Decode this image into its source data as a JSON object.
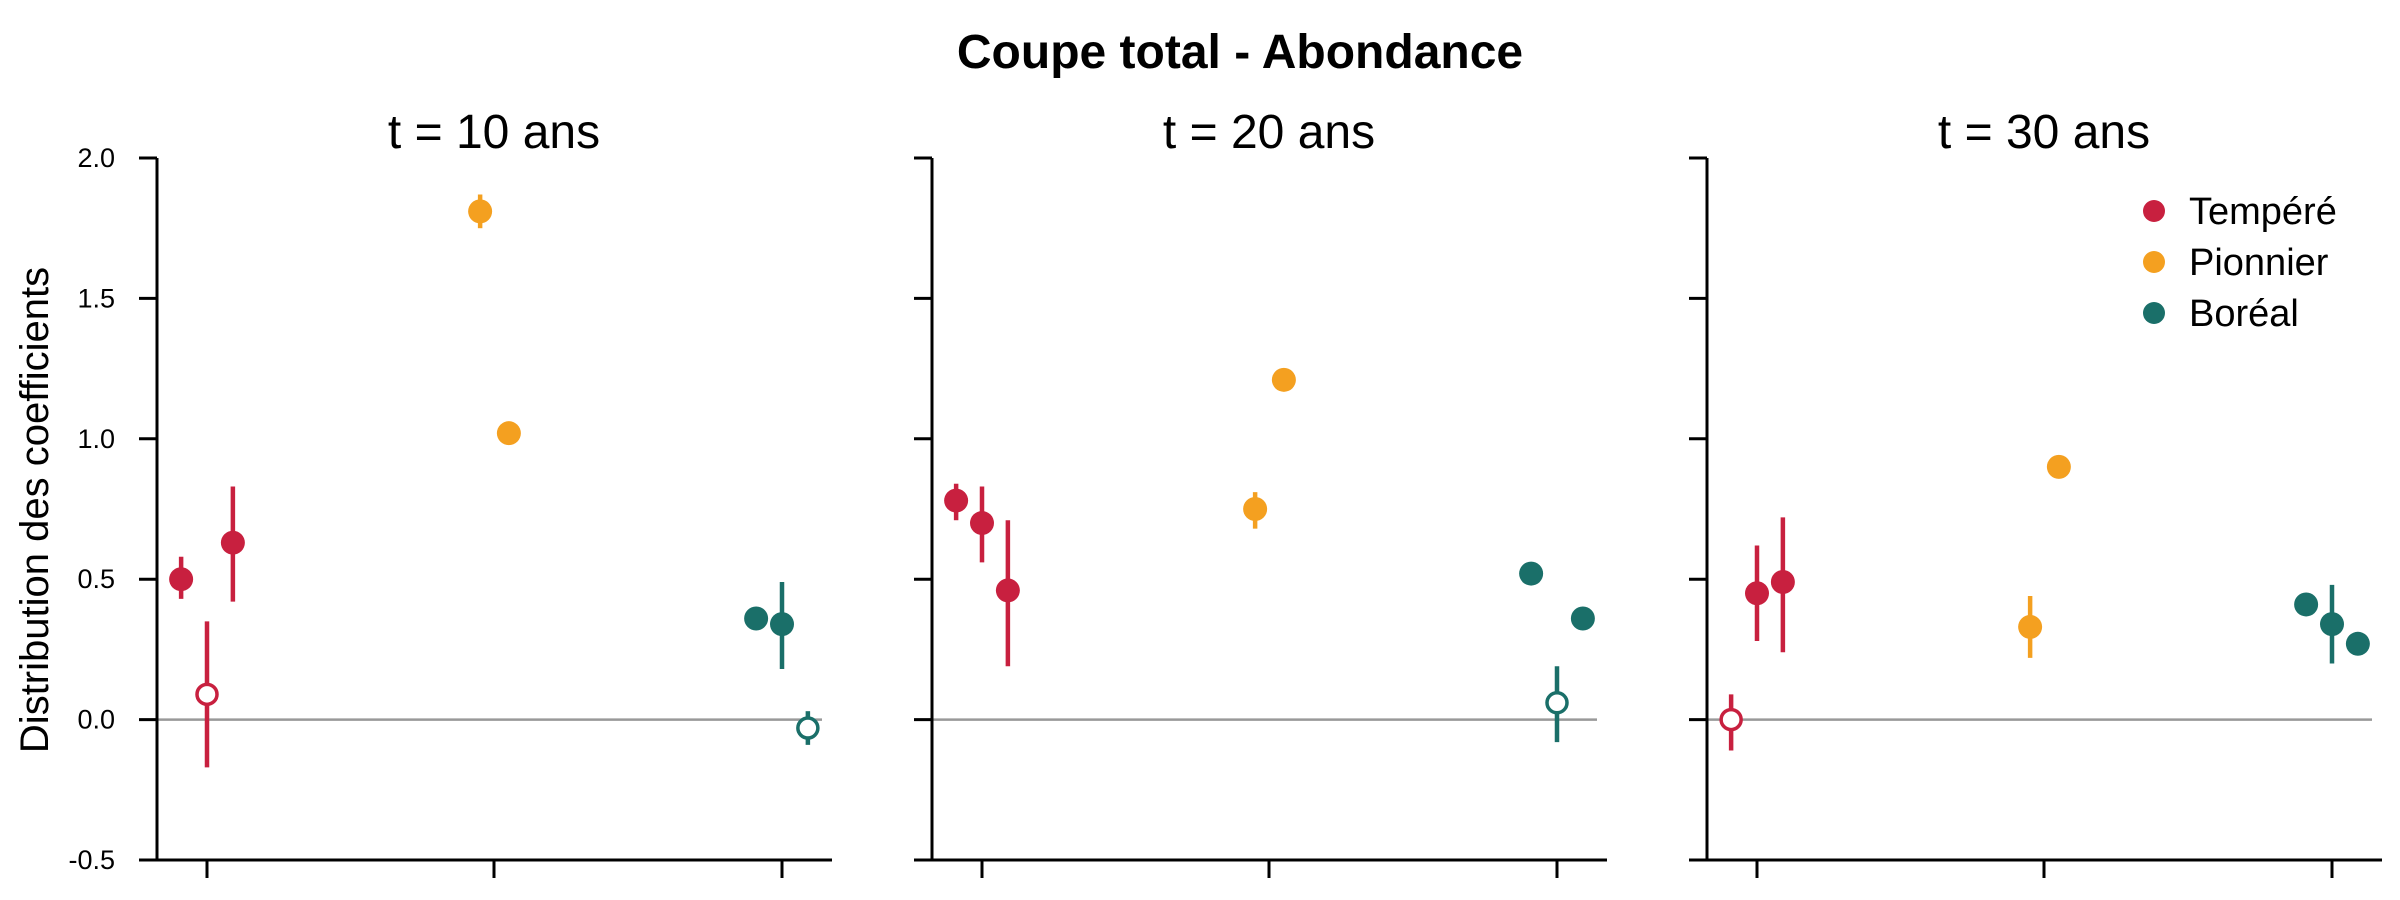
{
  "chart_data": {
    "type": "scatter",
    "title": "Coupe total - Abondance",
    "ylabel": "Distribution des coefficients",
    "ylim": [
      -0.5,
      2.0
    ],
    "yticks": [
      "2.0",
      "1.5",
      "1.0",
      "0.5",
      "0.0",
      "-0.5"
    ],
    "yticks_values": [
      2.0,
      1.5,
      1.0,
      0.5,
      0.0,
      -0.5
    ],
    "reference_line": 0.0,
    "legend_placement": "top-right",
    "colors": {
      "Tempéré": "#c8203f",
      "Pionnier": "#f4a020",
      "Boréal": "#1a6f69"
    },
    "series_names": [
      "Tempéré",
      "Pionnier",
      "Boréal"
    ],
    "panels": [
      {
        "label": "t = 10 ans",
        "points": [
          {
            "group": "Tempéré",
            "x": 0.91,
            "y": 0.5,
            "lo": 0.43,
            "hi": 0.58,
            "filled": true
          },
          {
            "group": "Tempéré",
            "x": 1.0,
            "y": 0.09,
            "lo": -0.17,
            "hi": 0.35,
            "filled": false
          },
          {
            "group": "Tempéré",
            "x": 1.09,
            "y": 0.63,
            "lo": 0.42,
            "hi": 0.83,
            "filled": true
          },
          {
            "group": "Pionnier",
            "x": 1.95,
            "y": 1.81,
            "lo": 1.75,
            "hi": 1.87,
            "filled": true
          },
          {
            "group": "Pionnier",
            "x": 2.05,
            "y": 1.02,
            "lo": 1.02,
            "hi": 1.02,
            "filled": true
          },
          {
            "group": "Boréal",
            "x": 2.91,
            "y": 0.36,
            "lo": 0.36,
            "hi": 0.36,
            "filled": true
          },
          {
            "group": "Boréal",
            "x": 3.0,
            "y": 0.34,
            "lo": 0.18,
            "hi": 0.49,
            "filled": true
          },
          {
            "group": "Boréal",
            "x": 3.09,
            "y": -0.03,
            "lo": -0.09,
            "hi": 0.03,
            "filled": false
          }
        ]
      },
      {
        "label": "t = 20 ans",
        "points": [
          {
            "group": "Tempéré",
            "x": 0.91,
            "y": 0.78,
            "lo": 0.71,
            "hi": 0.84,
            "filled": true
          },
          {
            "group": "Tempéré",
            "x": 1.0,
            "y": 0.7,
            "lo": 0.56,
            "hi": 0.83,
            "filled": true
          },
          {
            "group": "Tempéré",
            "x": 1.09,
            "y": 0.46,
            "lo": 0.19,
            "hi": 0.71,
            "filled": true
          },
          {
            "group": "Pionnier",
            "x": 1.95,
            "y": 0.75,
            "lo": 0.68,
            "hi": 0.81,
            "filled": true
          },
          {
            "group": "Pionnier",
            "x": 2.05,
            "y": 1.21,
            "lo": 1.21,
            "hi": 1.21,
            "filled": true
          },
          {
            "group": "Boréal",
            "x": 2.91,
            "y": 0.52,
            "lo": 0.52,
            "hi": 0.52,
            "filled": true
          },
          {
            "group": "Boréal",
            "x": 3.0,
            "y": 0.06,
            "lo": -0.08,
            "hi": 0.19,
            "filled": false
          },
          {
            "group": "Boréal",
            "x": 3.09,
            "y": 0.36,
            "lo": 0.36,
            "hi": 0.36,
            "filled": true
          }
        ]
      },
      {
        "label": "t = 30 ans",
        "points": [
          {
            "group": "Tempéré",
            "x": 0.91,
            "y": 0.0,
            "lo": -0.11,
            "hi": 0.09,
            "filled": false
          },
          {
            "group": "Tempéré",
            "x": 1.0,
            "y": 0.45,
            "lo": 0.28,
            "hi": 0.62,
            "filled": true
          },
          {
            "group": "Tempéré",
            "x": 1.09,
            "y": 0.49,
            "lo": 0.24,
            "hi": 0.72,
            "filled": true
          },
          {
            "group": "Pionnier",
            "x": 1.95,
            "y": 0.33,
            "lo": 0.22,
            "hi": 0.44,
            "filled": true
          },
          {
            "group": "Pionnier",
            "x": 2.05,
            "y": 0.9,
            "lo": 0.9,
            "hi": 0.9,
            "filled": true
          },
          {
            "group": "Boréal",
            "x": 2.91,
            "y": 0.41,
            "lo": 0.41,
            "hi": 0.41,
            "filled": true
          },
          {
            "group": "Boréal",
            "x": 3.0,
            "y": 0.34,
            "lo": 0.2,
            "hi": 0.48,
            "filled": true
          },
          {
            "group": "Boréal",
            "x": 3.09,
            "y": 0.27,
            "lo": 0.27,
            "hi": 0.27,
            "filled": true
          }
        ]
      }
    ]
  }
}
